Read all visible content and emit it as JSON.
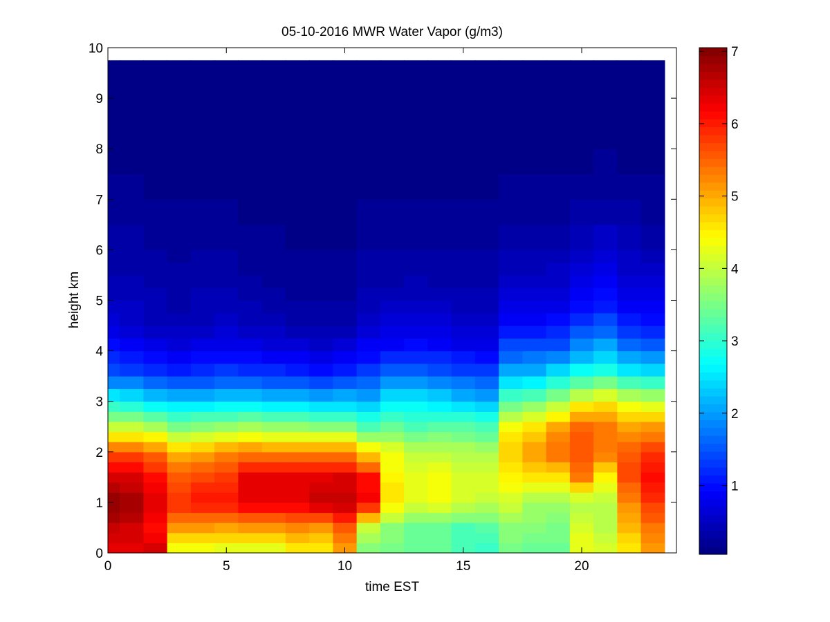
{
  "chart_data": {
    "type": "heatmap",
    "title": "05-10-2016 MWR Water Vapor (g/m3)",
    "xlabel": "time EST",
    "ylabel": "height km",
    "xlim": [
      0,
      24
    ],
    "ylim": [
      0,
      10
    ],
    "x_ticks": [
      0,
      5,
      10,
      15,
      20
    ],
    "y_ticks": [
      0,
      1,
      2,
      3,
      4,
      5,
      6,
      7,
      8,
      9,
      10
    ],
    "colorbar": {
      "colormap": "jet",
      "range": [
        0.05,
        7.05
      ],
      "ticks": [
        1,
        2,
        3,
        4,
        5,
        6,
        7
      ]
    },
    "x_centers": [
      0,
      1,
      2,
      3,
      4,
      5,
      6,
      7,
      8,
      9,
      10,
      11,
      12,
      13,
      14,
      15,
      16,
      17,
      18,
      19,
      20,
      21,
      22,
      23
    ],
    "y_top": 9.75,
    "height_profile": [
      0.1,
      0.5,
      1.0,
      1.5,
      2.0,
      2.5,
      3.0,
      3.5,
      4.0,
      4.5,
      5.0,
      6.0,
      7.0,
      8.0,
      9.75
    ],
    "values": [
      [
        6.3,
        6.6,
        7.0,
        6.4,
        5.6,
        4.0,
        2.8,
        1.6,
        1.0,
        0.7,
        0.5,
        0.3,
        0.2,
        0.12,
        0.08
      ],
      [
        6.3,
        6.5,
        6.9,
        6.4,
        5.6,
        4.0,
        2.7,
        1.5,
        0.9,
        0.6,
        0.45,
        0.3,
        0.2,
        0.12,
        0.08
      ],
      [
        6.4,
        6.1,
        6.4,
        6.1,
        5.4,
        3.8,
        2.5,
        1.3,
        0.8,
        0.5,
        0.4,
        0.25,
        0.15,
        0.1,
        0.07
      ],
      [
        4.4,
        5.1,
        5.9,
        5.6,
        4.9,
        3.5,
        2.4,
        1.2,
        0.75,
        0.45,
        0.35,
        0.22,
        0.15,
        0.1,
        0.07
      ],
      [
        4.4,
        5.1,
        6.1,
        5.7,
        5.0,
        3.6,
        2.4,
        1.3,
        0.8,
        0.5,
        0.4,
        0.25,
        0.15,
        0.1,
        0.07
      ],
      [
        4.3,
        5.0,
        6.1,
        5.8,
        5.2,
        3.7,
        2.5,
        1.4,
        0.85,
        0.55,
        0.4,
        0.25,
        0.15,
        0.1,
        0.07
      ],
      [
        4.3,
        5.1,
        6.4,
        6.3,
        5.3,
        3.8,
        2.5,
        1.4,
        0.8,
        0.5,
        0.35,
        0.2,
        0.12,
        0.08,
        0.06
      ],
      [
        4.3,
        5.1,
        6.4,
        6.3,
        5.2,
        3.7,
        2.4,
        1.3,
        0.75,
        0.45,
        0.3,
        0.18,
        0.1,
        0.08,
        0.06
      ],
      [
        4.6,
        5.2,
        6.4,
        6.3,
        5.2,
        3.7,
        2.3,
        1.2,
        0.7,
        0.4,
        0.28,
        0.15,
        0.1,
        0.07,
        0.06
      ],
      [
        4.6,
        5.1,
        6.6,
        6.3,
        5.2,
        3.6,
        2.2,
        1.1,
        0.6,
        0.35,
        0.25,
        0.15,
        0.1,
        0.07,
        0.06
      ],
      [
        5.1,
        5.6,
        6.6,
        6.4,
        5.2,
        3.6,
        2.3,
        1.2,
        0.7,
        0.4,
        0.28,
        0.15,
        0.1,
        0.07,
        0.06
      ],
      [
        3.6,
        4.0,
        6.2,
        6.1,
        4.6,
        3.2,
        2.2,
        1.4,
        0.9,
        0.6,
        0.4,
        0.25,
        0.15,
        0.1,
        0.07
      ],
      [
        3.5,
        3.6,
        4.6,
        4.5,
        4.3,
        3.4,
        2.6,
        1.7,
        1.0,
        0.65,
        0.45,
        0.25,
        0.15,
        0.1,
        0.07
      ],
      [
        3.4,
        3.4,
        4.2,
        4.3,
        4.0,
        3.2,
        2.6,
        1.7,
        1.1,
        0.7,
        0.5,
        0.3,
        0.15,
        0.1,
        0.07
      ],
      [
        3.4,
        3.4,
        4.3,
        4.4,
        4.0,
        3.3,
        2.5,
        1.6,
        1.0,
        0.65,
        0.45,
        0.25,
        0.15,
        0.1,
        0.07
      ],
      [
        3.2,
        3.2,
        4.1,
        4.2,
        3.9,
        3.3,
        2.3,
        1.5,
        0.9,
        0.55,
        0.4,
        0.25,
        0.15,
        0.1,
        0.07
      ],
      [
        3.1,
        3.3,
        4.0,
        4.2,
        3.8,
        3.2,
        2.2,
        1.4,
        0.9,
        0.55,
        0.4,
        0.25,
        0.15,
        0.1,
        0.07
      ],
      [
        3.5,
        3.6,
        4.1,
        4.5,
        4.8,
        4.4,
        3.3,
        2.2,
        1.5,
        1.0,
        0.65,
        0.35,
        0.2,
        0.1,
        0.07
      ],
      [
        3.4,
        3.6,
        3.8,
        4.6,
        5.2,
        4.6,
        3.5,
        2.3,
        1.5,
        1.0,
        0.65,
        0.35,
        0.2,
        0.1,
        0.07
      ],
      [
        3.4,
        3.5,
        3.8,
        4.6,
        5.5,
        5.0,
        3.8,
        2.6,
        1.6,
        1.0,
        0.7,
        0.4,
        0.2,
        0.12,
        0.07
      ],
      [
        4.3,
        4.2,
        3.8,
        5.3,
        5.6,
        5.5,
        4.3,
        2.9,
        2.0,
        1.3,
        0.9,
        0.5,
        0.25,
        0.12,
        0.08
      ],
      [
        4.1,
        3.9,
        3.9,
        4.5,
        5.4,
        5.4,
        4.5,
        3.1,
        2.2,
        1.5,
        1.0,
        0.6,
        0.3,
        0.15,
        0.08
      ],
      [
        4.6,
        4.9,
        5.2,
        5.7,
        5.6,
        5.0,
        4.2,
        2.8,
        1.8,
        1.2,
        0.8,
        0.45,
        0.25,
        0.12,
        0.08
      ],
      [
        5.1,
        5.4,
        5.8,
        6.1,
        5.8,
        5.1,
        4.1,
        2.7,
        1.7,
        1.1,
        0.75,
        0.4,
        0.22,
        0.12,
        0.08
      ]
    ]
  }
}
